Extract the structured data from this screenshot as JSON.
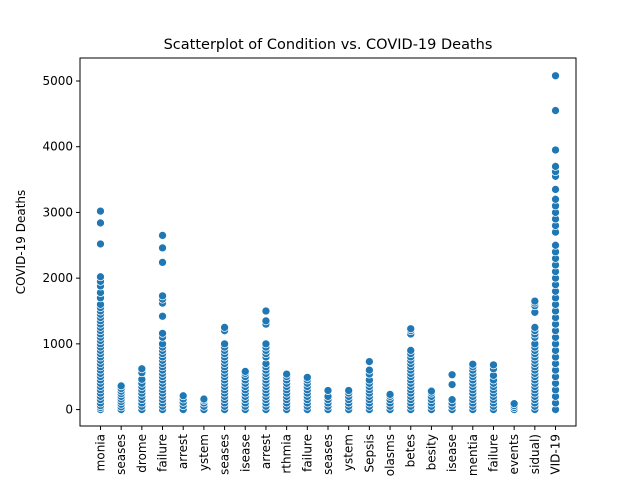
{
  "chart_data": {
    "type": "scatter",
    "title": "Scatterplot of Condition vs. COVID-19 Deaths",
    "xlabel": "",
    "ylabel": "COVID-19 Deaths",
    "ylim": [
      -250,
      5350
    ],
    "yticks": [
      0,
      1000,
      2000,
      3000,
      4000,
      5000
    ],
    "grid": false,
    "marker_color": "#1f77b4",
    "categories": [
      "monia",
      "seases",
      "drome",
      "failure",
      "arrest",
      "ystem",
      "seases",
      "isease",
      "arrest",
      "rthmia",
      "failure",
      "seases",
      "ystem",
      "Sepsis",
      "olasms",
      "betes",
      "besity",
      "isease",
      "mentia",
      "failure",
      "events",
      "sidual)",
      "VID-19"
    ],
    "points_by_category": [
      [
        0,
        30,
        60,
        100,
        150,
        200,
        250,
        300,
        350,
        400,
        450,
        500,
        550,
        600,
        650,
        700,
        750,
        800,
        850,
        900,
        950,
        1000,
        1050,
        1100,
        1150,
        1200,
        1250,
        1300,
        1350,
        1400,
        1450,
        1500,
        1550,
        1600,
        1700,
        1780,
        1880,
        1950,
        2020,
        2520,
        2840,
        3020
      ],
      [
        0,
        40,
        80,
        120,
        160,
        200,
        240,
        280,
        320,
        360
      ],
      [
        0,
        50,
        100,
        150,
        200,
        250,
        300,
        350,
        400,
        460,
        560,
        620
      ],
      [
        0,
        50,
        100,
        150,
        200,
        250,
        300,
        350,
        400,
        450,
        500,
        550,
        600,
        650,
        700,
        750,
        800,
        850,
        900,
        950,
        1000,
        1100,
        1160,
        1420,
        1620,
        1680,
        1730,
        2240,
        2460,
        2650
      ],
      [
        0,
        60,
        110,
        160,
        210
      ],
      [
        0,
        50,
        100,
        140,
        160
      ],
      [
        0,
        50,
        100,
        150,
        200,
        250,
        300,
        350,
        400,
        450,
        500,
        550,
        600,
        650,
        700,
        750,
        800,
        850,
        900,
        950,
        1000,
        1200,
        1250
      ],
      [
        0,
        50,
        100,
        150,
        200,
        250,
        300,
        350,
        400,
        450,
        500,
        550,
        580
      ],
      [
        0,
        50,
        100,
        150,
        200,
        250,
        300,
        350,
        400,
        450,
        500,
        550,
        600,
        650,
        700,
        800,
        850,
        900,
        950,
        1000,
        1300,
        1350,
        1500
      ],
      [
        0,
        50,
        100,
        150,
        200,
        250,
        300,
        350,
        400,
        450,
        500,
        540
      ],
      [
        0,
        50,
        100,
        150,
        200,
        250,
        300,
        350,
        400,
        450,
        490
      ],
      [
        0,
        50,
        100,
        150,
        200,
        290
      ],
      [
        0,
        50,
        100,
        150,
        200,
        250,
        290
      ],
      [
        0,
        50,
        100,
        150,
        200,
        250,
        300,
        350,
        400,
        450,
        540,
        600,
        730
      ],
      [
        0,
        50,
        100,
        150,
        200,
        230
      ],
      [
        0,
        50,
        100,
        150,
        200,
        250,
        300,
        350,
        400,
        450,
        500,
        550,
        600,
        650,
        700,
        750,
        800,
        850,
        900,
        1150,
        1200,
        1230
      ],
      [
        0,
        50,
        100,
        150,
        200,
        250,
        280
      ],
      [
        0,
        50,
        100,
        150,
        380,
        530
      ],
      [
        0,
        50,
        100,
        150,
        200,
        250,
        300,
        350,
        400,
        450,
        500,
        550,
        600,
        650,
        690
      ],
      [
        0,
        50,
        100,
        150,
        200,
        250,
        300,
        350,
        400,
        450,
        520,
        620,
        680
      ],
      [
        0,
        30,
        60,
        90
      ],
      [
        0,
        50,
        100,
        150,
        200,
        250,
        300,
        350,
        400,
        450,
        500,
        550,
        600,
        650,
        700,
        750,
        800,
        850,
        900,
        950,
        1000,
        1100,
        1150,
        1200,
        1250,
        1480,
        1580,
        1620,
        1650
      ],
      [
        0,
        100,
        200,
        300,
        400,
        500,
        600,
        700,
        800,
        900,
        1000,
        1100,
        1200,
        1300,
        1400,
        1500,
        1600,
        1700,
        1800,
        1900,
        2000,
        2100,
        2200,
        2300,
        2400,
        2500,
        2700,
        2800,
        2900,
        3000,
        3100,
        3200,
        3350,
        3550,
        3620,
        3700,
        3950,
        4550,
        5080
      ]
    ]
  }
}
